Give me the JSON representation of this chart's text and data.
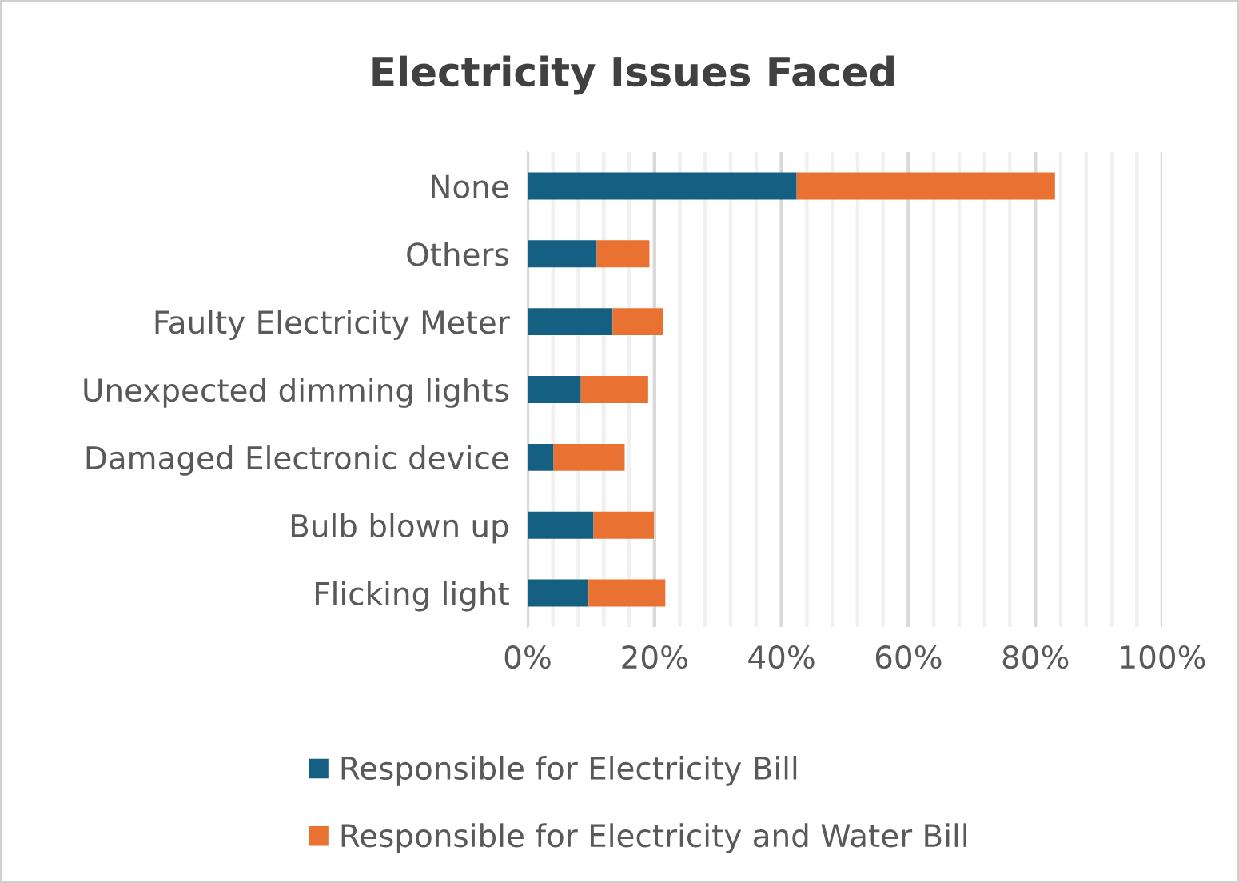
{
  "chart_data": {
    "type": "bar",
    "orientation": "horizontal",
    "stacked": true,
    "title": "Electricity Issues Faced",
    "categories": [
      "None",
      "Others",
      "Faulty Electricity Meter",
      "Unexpected dimming lights",
      "Damaged Electronic device",
      "Bulb blown up",
      "Flicking light"
    ],
    "series": [
      {
        "name": "Responsible for Electricity Bill",
        "color": "#156082",
        "values": [
          42.4,
          10.9,
          13.4,
          8.4,
          4.1,
          10.4,
          9.6
        ]
      },
      {
        "name": "Responsible for Electricity and Water Bill",
        "color": "#e97132",
        "values": [
          40.7,
          8.3,
          8.0,
          10.6,
          11.2,
          9.5,
          12.1
        ]
      }
    ],
    "xlim": [
      0,
      100
    ],
    "xticks": [
      {
        "value": 0,
        "label": "0%"
      },
      {
        "value": 4,
        "label": null
      },
      {
        "value": 8,
        "label": null
      },
      {
        "value": 12,
        "label": null
      },
      {
        "value": 16,
        "label": null
      },
      {
        "value": 20,
        "label": "20%"
      },
      {
        "value": 24,
        "label": null
      },
      {
        "value": 28,
        "label": null
      },
      {
        "value": 32,
        "label": null
      },
      {
        "value": 36,
        "label": null
      },
      {
        "value": 40,
        "label": "40%"
      },
      {
        "value": 44,
        "label": null
      },
      {
        "value": 48,
        "label": null
      },
      {
        "value": 52,
        "label": null
      },
      {
        "value": 56,
        "label": null
      },
      {
        "value": 60,
        "label": "60%"
      },
      {
        "value": 64,
        "label": null
      },
      {
        "value": 68,
        "label": null
      },
      {
        "value": 72,
        "label": null
      },
      {
        "value": 76,
        "label": null
      },
      {
        "value": 80,
        "label": "80%"
      },
      {
        "value": 84,
        "label": null
      },
      {
        "value": 88,
        "label": null
      },
      {
        "value": 92,
        "label": null
      },
      {
        "value": 96,
        "label": null
      },
      {
        "value": 100,
        "label": "100%"
      }
    ],
    "grid": "x",
    "legend": "bottom"
  }
}
